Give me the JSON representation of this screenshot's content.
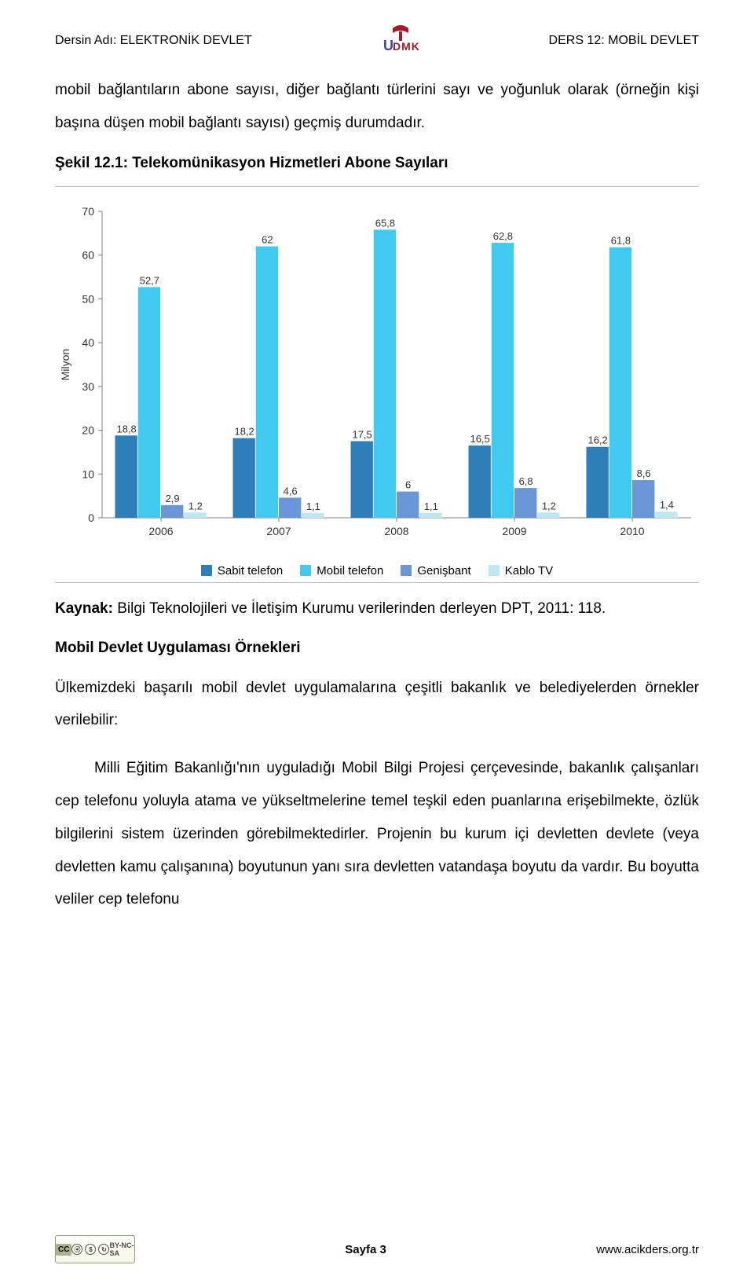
{
  "header": {
    "left": "Dersin Adı: ELEKTRONİK DEVLET",
    "right": "DERS 12: MOBİL DEVLET",
    "logo_text_top": "U",
    "logo_text_mid": "DMK",
    "logo_colors": {
      "book": "#a11b2a",
      "u": "#3a4aa8",
      "dmk": "#a11b2a"
    }
  },
  "paragraphs": {
    "intro": "mobil bağlantıların abone sayısı, diğer bağlantı türlerini sayı ve yoğunluk olarak (örneğin kişi başına düşen mobil bağlantı sayısı) geçmiş durumdadır.",
    "fig_caption": "Şekil 12.1: Telekomünikasyon Hizmetleri Abone Sayıları",
    "source_label": "Kaynak:",
    "source_text": " Bilgi Teknolojileri ve İletişim Kurumu verilerinden derleyen DPT, 2011: 118.",
    "section_heading": "Mobil Devlet Uygulaması Örnekleri",
    "p2": "Ülkemizdeki başarılı mobil devlet uygulamalarına çeşitli bakanlık ve belediyelerden örnekler verilebilir:",
    "p3": "Milli Eğitim Bakanlığı'nın uyguladığı Mobil Bilgi Projesi çerçevesinde, bakanlık çalışanları cep telefonu yoluyla atama ve yükseltmelerine temel teşkil eden puanlarına erişebilmekte, özlük bilgilerini sistem üzerinden görebilmektedirler. Projenin bu kurum içi devletten devlete (veya devletten kamu çalışanına) boyutunun yanı sıra devletten vatandaşa boyutu da vardır. Bu boyutta veliler cep telefonu"
  },
  "chart": {
    "type": "bar",
    "y_label": "Milyon",
    "ylim": [
      0,
      70
    ],
    "ytick_step": 10,
    "categories": [
      "2006",
      "2007",
      "2008",
      "2009",
      "2010"
    ],
    "series": [
      {
        "name": "Sabit telefon",
        "color": "#2c7fb8",
        "values": [
          18.8,
          18.2,
          17.5,
          16.5,
          16.2
        ]
      },
      {
        "name": "Mobil telefon",
        "color": "#41c9f0",
        "values": [
          52.7,
          62.0,
          65.8,
          62.8,
          61.8
        ]
      },
      {
        "name": "Genişbant",
        "color": "#6a95d6",
        "values": [
          2.9,
          4.6,
          6.0,
          6.8,
          8.6
        ]
      },
      {
        "name": "Kablo TV",
        "color": "#bde7f4",
        "values": [
          1.2,
          1.1,
          1.1,
          1.2,
          1.4
        ]
      }
    ],
    "axis_color": "#808080",
    "text_color": "#333333",
    "label_fontsize": 14,
    "value_fontsize": 13,
    "background_color": "#ffffff",
    "bar_group_width": 0.78,
    "bar_gap": 0.03
  },
  "footer": {
    "page": "Sayfa 3",
    "site": "www.acikders.org.tr",
    "cc": {
      "left": "CC",
      "text": "BY-NC-SA"
    }
  }
}
